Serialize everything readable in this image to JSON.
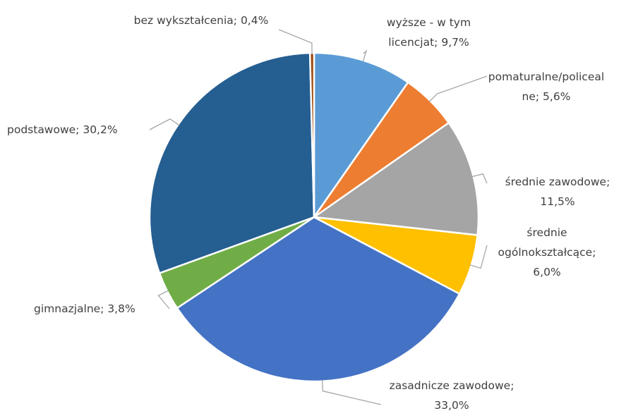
{
  "chart_data": {
    "type": "pie",
    "values": [
      9.7,
      5.6,
      11.5,
      6.0,
      33.0,
      3.8,
      30.2,
      0.4
    ],
    "value_labels": [
      "wyższe - w tym licencjat; 9,7%",
      "pomaturalne/policealne; 5,6%",
      "średnie zawodowe; 11,5%",
      "średnie ogólnokształcące; 6,0%",
      "zasadnicze zawodowe; 33,0%",
      "gimnazjalne; 3,8%",
      "podstawowe; 30,2%",
      "bez wykształcenia; 0,4%"
    ],
    "colors": [
      "#5b9bd5",
      "#ed7d31",
      "#a5a5a5",
      "#ffc000",
      "#4472c4",
      "#70ad47",
      "#255e91",
      "#9e480e"
    ]
  }
}
